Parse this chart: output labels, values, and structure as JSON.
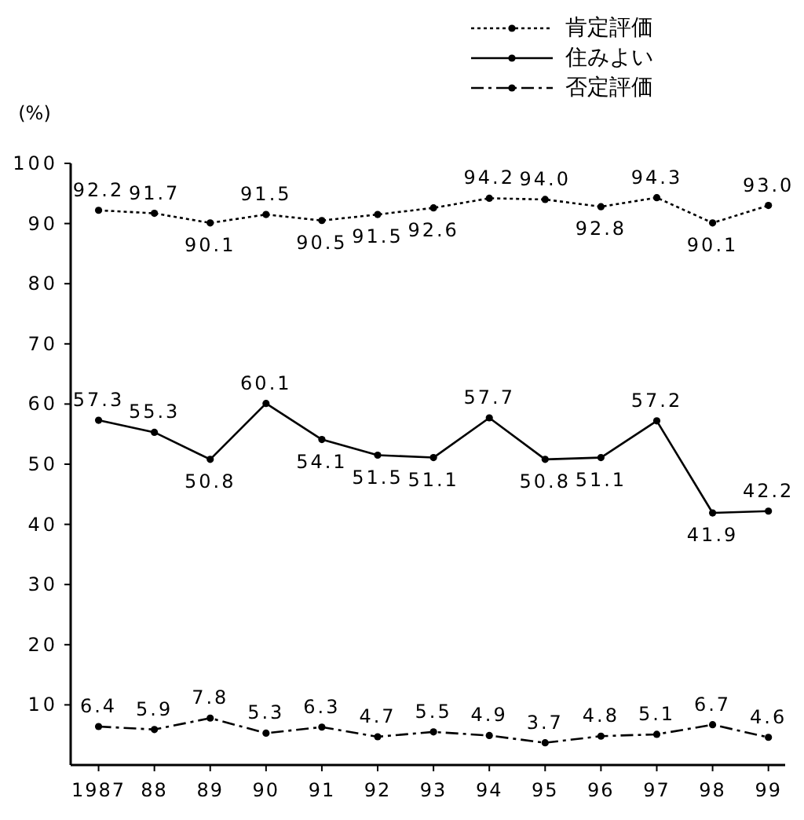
{
  "chart_data": {
    "type": "line",
    "ylabel": "(%)",
    "x": [
      1987,
      1988,
      1989,
      1990,
      1991,
      1992,
      1993,
      1994,
      1995,
      1996,
      1997,
      1998,
      1999
    ],
    "xlim": [
      1986.5,
      1999.3
    ],
    "xticks": [
      1987,
      {
        "value": 1988,
        "label": "88"
      },
      {
        "value": 1989,
        "label": "89"
      },
      {
        "value": 1990,
        "label": "90"
      },
      {
        "value": 1991,
        "label": "91"
      },
      {
        "value": 1992,
        "label": "92"
      },
      {
        "value": 1993,
        "label": "93"
      },
      {
        "value": 1994,
        "label": "94"
      },
      {
        "value": 1995,
        "label": "95"
      },
      {
        "value": 1996,
        "label": "96"
      },
      {
        "value": 1997,
        "label": "97"
      },
      {
        "value": 1998,
        "label": "98"
      },
      {
        "value": 1999,
        "label": "99"
      }
    ],
    "ylim": [
      0,
      100
    ],
    "yticks": [
      10,
      20,
      30,
      40,
      50,
      60,
      70,
      80,
      90,
      100
    ],
    "grid": false,
    "legend": "top right",
    "marker": "circle",
    "series": [
      {
        "name": "肯定評価",
        "color": "#000000",
        "line_style": "dotted",
        "values": [
          92.2,
          91.7,
          90.1,
          91.5,
          90.5,
          91.5,
          92.6,
          94.2,
          94.0,
          92.8,
          94.3,
          90.1,
          93.0
        ],
        "value_labels": [
          "92.2",
          "91.7",
          "90.1",
          "91.5",
          "90.5",
          "91.5",
          "92.6",
          "94.2",
          "94.0",
          "92.8",
          "94.3",
          "90.1",
          "93.0"
        ]
      },
      {
        "name": "住みよい",
        "color": "#000000",
        "line_style": "solid",
        "values": [
          57.3,
          55.3,
          50.8,
          60.1,
          54.1,
          51.5,
          51.1,
          57.7,
          50.8,
          51.1,
          57.2,
          41.9,
          42.2
        ],
        "value_labels": [
          "57.3",
          "55.3",
          "50.8",
          "60.1",
          "54.1",
          "51.5",
          "51.1",
          "57.7",
          "50.8",
          "51.1",
          "57.2",
          "41.9",
          "42.2"
        ]
      },
      {
        "name": "否定評価",
        "color": "#000000",
        "line_style": "dashed",
        "values": [
          6.4,
          5.9,
          7.8,
          5.3,
          6.3,
          4.7,
          5.5,
          4.9,
          3.7,
          4.8,
          5.1,
          6.7,
          4.6
        ],
        "value_labels": [
          "6.4",
          "5.9",
          "7.8",
          "5.3",
          "6.3",
          "4.7",
          "5.5",
          "4.9",
          "3.7",
          "4.8",
          "5.1",
          "6.7",
          "4.6"
        ]
      }
    ]
  }
}
